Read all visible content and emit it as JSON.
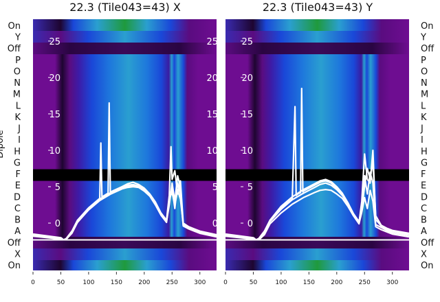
{
  "chart_data": [
    {
      "type": "heatmap",
      "title": "22.3 (Tile043=43) X",
      "ylabel": "Dipole",
      "xlim": [
        0,
        330
      ],
      "ylim": [
        -6.5,
        28
      ],
      "xticks": [
        0,
        50,
        100,
        150,
        200,
        250,
        300
      ],
      "yticks": [
        0,
        5,
        10,
        15,
        20,
        25
      ],
      "baseline_y": -2.3,
      "gap_band": [
        5.8,
        7.4
      ],
      "series": [
        {
          "x": [
            0,
            50,
            55,
            60,
            70,
            80,
            100,
            120,
            140,
            160,
            170,
            180,
            190,
            200,
            210,
            220,
            230,
            240,
            245,
            250,
            255,
            260,
            265,
            270,
            280,
            290,
            300,
            330
          ],
          "y": [
            -1.6,
            -2.1,
            -2.3,
            -2.2,
            -1.2,
            0.3,
            2.0,
            3.3,
            4.2,
            4.9,
            5.2,
            5.3,
            5.1,
            4.6,
            3.9,
            2.7,
            1.3,
            0.3,
            3.4,
            4.2,
            2.5,
            4.5,
            3.3,
            -0.1,
            -0.6,
            -0.9,
            -1.2,
            -1.7
          ]
        },
        {
          "x": [
            0,
            50,
            55,
            60,
            70,
            80,
            100,
            120,
            140,
            160,
            170,
            180,
            190,
            200,
            210,
            220,
            230,
            240,
            245,
            250,
            255,
            260,
            265,
            270,
            280,
            290,
            300,
            330
          ],
          "y": [
            -1.7,
            -2.1,
            -2.3,
            -2.2,
            -1.3,
            0.2,
            1.9,
            3.2,
            4.1,
            4.8,
            5.0,
            5.2,
            5.0,
            4.5,
            3.8,
            2.6,
            1.2,
            0.2,
            2.5,
            5.5,
            3.0,
            6.5,
            5.0,
            -0.3,
            -0.7,
            -1.0,
            -1.3,
            -1.8
          ]
        },
        {
          "x": [
            0,
            50,
            55,
            60,
            70,
            80,
            100,
            120,
            122,
            124,
            135,
            137,
            139,
            140,
            160,
            170,
            180,
            190,
            200,
            210,
            220,
            230,
            240,
            245,
            248,
            250,
            255,
            260,
            265,
            270,
            280,
            290,
            300,
            330
          ],
          "y": [
            -1.5,
            -2.0,
            -2.3,
            -2.1,
            -1.1,
            0.4,
            2.1,
            3.4,
            11.0,
            3.6,
            4.1,
            16.5,
            4.2,
            4.3,
            5.0,
            5.4,
            5.6,
            5.3,
            4.8,
            4.0,
            2.9,
            1.4,
            0.4,
            3.8,
            10.5,
            6.0,
            7.2,
            4.0,
            5.8,
            0.0,
            -0.5,
            -0.8,
            -1.1,
            -1.6
          ]
        },
        {
          "x": [
            0,
            50,
            55,
            60,
            70,
            80,
            100,
            120,
            140,
            160,
            170,
            180,
            190,
            200,
            210,
            220,
            230,
            240,
            245,
            250,
            255,
            260,
            265,
            270,
            280,
            290,
            300,
            330
          ],
          "y": [
            -1.8,
            -2.2,
            -2.3,
            -2.2,
            -1.4,
            0.1,
            1.8,
            3.1,
            4.0,
            4.7,
            4.9,
            5.0,
            4.9,
            4.4,
            3.7,
            2.5,
            1.1,
            0.1,
            3.0,
            4.8,
            2.0,
            5.5,
            4.0,
            -0.4,
            -0.8,
            -1.1,
            -1.4,
            -1.9
          ]
        }
      ]
    },
    {
      "type": "heatmap",
      "title": "22.3 (Tile043=43) Y",
      "ylabel": "",
      "xlim": [
        0,
        330
      ],
      "ylim": [
        -6.5,
        28
      ],
      "xticks": [
        0,
        50,
        100,
        150,
        200,
        250,
        300
      ],
      "yticks": [
        0,
        5,
        10,
        15,
        20,
        25
      ],
      "baseline_y": -2.3,
      "gap_band": [
        5.8,
        7.4
      ],
      "series": [
        {
          "x": [
            0,
            50,
            55,
            60,
            70,
            80,
            100,
            120,
            140,
            160,
            170,
            180,
            190,
            200,
            210,
            220,
            230,
            240,
            245,
            250,
            255,
            260,
            265,
            270,
            280,
            290,
            300,
            330
          ],
          "y": [
            -1.5,
            -2.0,
            -2.3,
            -2.1,
            -1.1,
            0.4,
            2.3,
            3.6,
            4.6,
            5.4,
            5.8,
            6.0,
            5.7,
            5.0,
            4.1,
            2.8,
            1.3,
            0.2,
            2.0,
            5.0,
            7.5,
            6.0,
            8.5,
            1.0,
            -0.3,
            -0.7,
            -1.0,
            -1.4
          ]
        },
        {
          "x": [
            0,
            50,
            55,
            60,
            70,
            80,
            100,
            120,
            125,
            127,
            130,
            135,
            137,
            139,
            140,
            160,
            170,
            180,
            190,
            200,
            210,
            220,
            230,
            240,
            245,
            250,
            255,
            260,
            265,
            270,
            280,
            290,
            300,
            330
          ],
          "y": [
            -1.6,
            -2.1,
            -2.3,
            -2.2,
            -1.2,
            0.3,
            2.1,
            3.3,
            16.0,
            3.8,
            4.0,
            4.2,
            18.5,
            4.3,
            4.4,
            5.2,
            5.6,
            5.8,
            5.5,
            4.8,
            3.9,
            2.6,
            1.1,
            0.0,
            3.0,
            9.5,
            6.0,
            5.5,
            10.0,
            0.5,
            -0.4,
            -0.8,
            -1.1,
            -1.5
          ]
        },
        {
          "x": [
            0,
            50,
            55,
            60,
            70,
            80,
            100,
            120,
            140,
            160,
            170,
            180,
            190,
            200,
            210,
            220,
            230,
            240,
            245,
            250,
            255,
            260,
            265,
            270,
            280,
            290,
            300,
            330
          ],
          "y": [
            -1.8,
            -2.2,
            -2.3,
            -2.3,
            -1.6,
            -0.1,
            1.4,
            2.6,
            3.5,
            4.2,
            4.5,
            4.6,
            4.5,
            4.0,
            3.4,
            2.3,
            1.0,
            -0.1,
            1.5,
            3.5,
            2.0,
            4.5,
            3.0,
            -0.5,
            -0.9,
            -1.2,
            -1.5,
            -1.9
          ]
        },
        {
          "x": [
            0,
            50,
            55,
            60,
            70,
            80,
            100,
            120,
            140,
            160,
            170,
            180,
            190,
            200,
            210,
            220,
            230,
            240,
            245,
            250,
            255,
            260,
            265,
            270,
            280,
            290,
            300,
            330
          ],
          "y": [
            -1.7,
            -2.1,
            -2.3,
            -2.2,
            -1.3,
            0.2,
            1.9,
            3.2,
            4.1,
            4.9,
            5.3,
            5.5,
            5.2,
            4.6,
            3.8,
            2.6,
            1.2,
            0.1,
            2.5,
            6.5,
            4.0,
            7.0,
            5.5,
            -0.2,
            -0.6,
            -1.0,
            -1.3,
            -1.7
          ]
        }
      ]
    }
  ],
  "dipole_labels_left": [
    "On",
    "Y",
    "Off",
    "P",
    "O",
    "N",
    "M",
    "L",
    "K",
    "J",
    "I",
    "H",
    "G",
    "F",
    "E",
    "D",
    "C",
    "B",
    "A",
    "Off",
    "X",
    "On"
  ],
  "dipole_labels_right": [
    "On",
    "Y",
    "Off",
    "P",
    "O",
    "N",
    "M",
    "L",
    "K",
    "J",
    "I",
    "H",
    "G",
    "F",
    "E",
    "D",
    "C",
    "B",
    "A",
    "Off",
    "X",
    "On"
  ],
  "colors": {
    "purple": "#6e0d91",
    "dark": "#1e0530",
    "blue": "#1a47d8",
    "green": "#1f9a3c",
    "cyan": "#2a9fd0",
    "trace": "#ffffff"
  }
}
